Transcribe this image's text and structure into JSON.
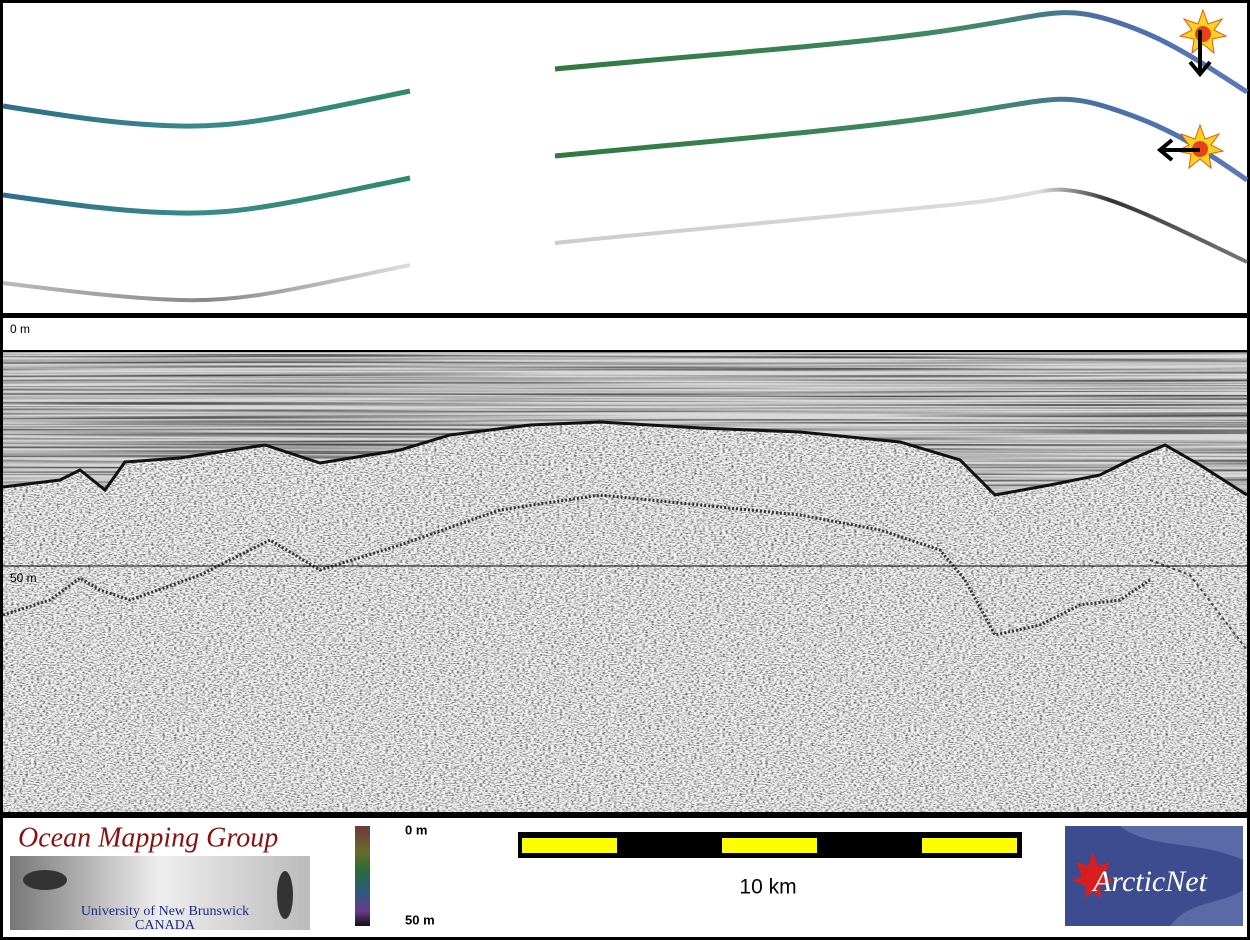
{
  "profile": {
    "depth_labels": [
      "0 m",
      "50 m"
    ]
  },
  "footer": {
    "omg_logo": {
      "title": "Ocean Mapping Group",
      "line1": "University of New Brunswick",
      "line2": "CANADA"
    },
    "colorbar": {
      "top": "0 m",
      "bottom": "50 m"
    },
    "scale_bar": {
      "label": "10 km"
    },
    "arcticnet_logo": {
      "text": "ArcticNet"
    }
  }
}
